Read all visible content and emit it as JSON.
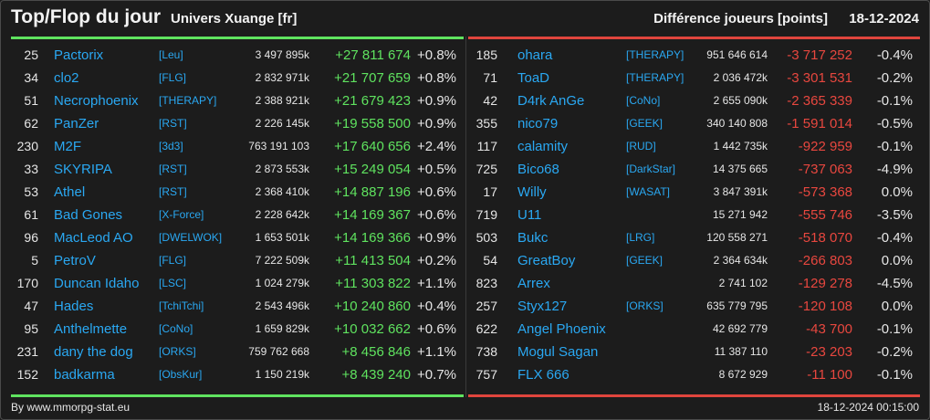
{
  "header": {
    "title": "Top/Flop du jour",
    "universe": "Univers Xuange [fr]",
    "diff_label": "Différence joueurs [points]",
    "date": "18-12-2024"
  },
  "colors": {
    "top": "#5fe35f",
    "flop": "#e0453d",
    "link": "#2aa8f2"
  },
  "top": [
    {
      "rank": "25",
      "name": "Pactorix",
      "alliance": "[Leu]",
      "points": "3 497 895k",
      "delta": "+27 811 674",
      "pct": "+0.8%"
    },
    {
      "rank": "34",
      "name": "clo2",
      "alliance": "[FLG]",
      "points": "2 832 971k",
      "delta": "+21 707 659",
      "pct": "+0.8%"
    },
    {
      "rank": "51",
      "name": "Necrophoenix",
      "alliance": "[THERAPY]",
      "points": "2 388 921k",
      "delta": "+21 679 423",
      "pct": "+0.9%"
    },
    {
      "rank": "62",
      "name": "PanZer",
      "alliance": "[RST]",
      "points": "2 226 145k",
      "delta": "+19 558 500",
      "pct": "+0.9%"
    },
    {
      "rank": "230",
      "name": "M2F",
      "alliance": "[3d3]",
      "points": "763 191 103",
      "delta": "+17 640 656",
      "pct": "+2.4%"
    },
    {
      "rank": "33",
      "name": "SKYRIPA",
      "alliance": "[RST]",
      "points": "2 873 553k",
      "delta": "+15 249 054",
      "pct": "+0.5%"
    },
    {
      "rank": "53",
      "name": "Athel",
      "alliance": "[RST]",
      "points": "2 368 410k",
      "delta": "+14 887 196",
      "pct": "+0.6%"
    },
    {
      "rank": "61",
      "name": "Bad Gones",
      "alliance": "[X-Force]",
      "points": "2 228 642k",
      "delta": "+14 169 367",
      "pct": "+0.6%"
    },
    {
      "rank": "96",
      "name": "MacLeod AO",
      "alliance": "[DWELWOK]",
      "points": "1 653 501k",
      "delta": "+14 169 366",
      "pct": "+0.9%"
    },
    {
      "rank": "5",
      "name": "PetroV",
      "alliance": "[FLG]",
      "points": "7 222 509k",
      "delta": "+11 413 504",
      "pct": "+0.2%"
    },
    {
      "rank": "170",
      "name": "Duncan Idaho",
      "alliance": "[LSC]",
      "points": "1 024 279k",
      "delta": "+11 303 822",
      "pct": "+1.1%"
    },
    {
      "rank": "47",
      "name": "Hades",
      "alliance": "[TchiTchi]",
      "points": "2 543 496k",
      "delta": "+10 240 860",
      "pct": "+0.4%"
    },
    {
      "rank": "95",
      "name": "Anthelmette",
      "alliance": "[CoNo]",
      "points": "1 659 829k",
      "delta": "+10 032 662",
      "pct": "+0.6%"
    },
    {
      "rank": "231",
      "name": "dany the dog",
      "alliance": "[ORKS]",
      "points": "759 762 668",
      "delta": "+8 456 846",
      "pct": "+1.1%"
    },
    {
      "rank": "152",
      "name": "badkarma",
      "alliance": "[ObsKur]",
      "points": "1 150 219k",
      "delta": "+8 439 240",
      "pct": "+0.7%"
    }
  ],
  "flop": [
    {
      "rank": "185",
      "name": "ohara",
      "alliance": "[THERAPY]",
      "points": "951 646 614",
      "delta": "-3 717 252",
      "pct": "-0.4%"
    },
    {
      "rank": "71",
      "name": "ToaD",
      "alliance": "[THERAPY]",
      "points": "2 036 472k",
      "delta": "-3 301 531",
      "pct": "-0.2%"
    },
    {
      "rank": "42",
      "name": "D4rk AnGe",
      "alliance": "[CoNo]",
      "points": "2 655 090k",
      "delta": "-2 365 339",
      "pct": "-0.1%"
    },
    {
      "rank": "355",
      "name": "nico79",
      "alliance": "[GEEK]",
      "points": "340 140 808",
      "delta": "-1 591 014",
      "pct": "-0.5%"
    },
    {
      "rank": "117",
      "name": "calamity",
      "alliance": "[RUD]",
      "points": "1 442 735k",
      "delta": "-922 959",
      "pct": "-0.1%"
    },
    {
      "rank": "725",
      "name": "Bico68",
      "alliance": "[DarkStar]",
      "points": "14 375 665",
      "delta": "-737 063",
      "pct": "-4.9%"
    },
    {
      "rank": "17",
      "name": "Willy",
      "alliance": "[WASAT]",
      "points": "3 847 391k",
      "delta": "-573 368",
      "pct": "0.0%"
    },
    {
      "rank": "719",
      "name": "U11",
      "alliance": "",
      "points": "15 271 942",
      "delta": "-555 746",
      "pct": "-3.5%"
    },
    {
      "rank": "503",
      "name": "Bukc",
      "alliance": "[LRG]",
      "points": "120 558 271",
      "delta": "-518 070",
      "pct": "-0.4%"
    },
    {
      "rank": "54",
      "name": "GreatBoy",
      "alliance": "[GEEK]",
      "points": "2 364 634k",
      "delta": "-266 803",
      "pct": "0.0%"
    },
    {
      "rank": "823",
      "name": "Arrex",
      "alliance": "",
      "points": "2 741 102",
      "delta": "-129 278",
      "pct": "-4.5%"
    },
    {
      "rank": "257",
      "name": "Styx127",
      "alliance": "[ORKS]",
      "points": "635 779 795",
      "delta": "-120 108",
      "pct": "0.0%"
    },
    {
      "rank": "622",
      "name": "Angel Phoenix",
      "alliance": "",
      "points": "42 692 779",
      "delta": "-43 700",
      "pct": "-0.1%"
    },
    {
      "rank": "738",
      "name": "Mogul Sagan",
      "alliance": "",
      "points": "11 387 110",
      "delta": "-23 203",
      "pct": "-0.2%"
    },
    {
      "rank": "757",
      "name": "FLX 666",
      "alliance": "",
      "points": "8 672 929",
      "delta": "-11 100",
      "pct": "-0.1%"
    }
  ],
  "footer": {
    "credit": "By www.mmorpg-stat.eu",
    "timestamp": "18-12-2024 00:15:00"
  }
}
